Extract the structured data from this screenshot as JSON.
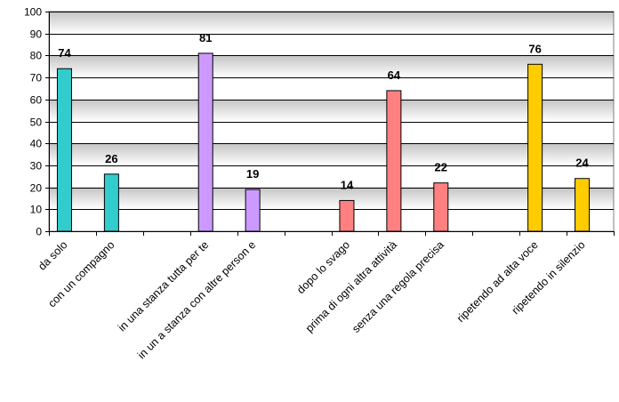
{
  "chart_data": {
    "type": "bar",
    "title": "",
    "xlabel": "",
    "ylabel": "",
    "ylim": [
      0,
      100
    ],
    "yticks": [
      0,
      10,
      20,
      30,
      40,
      50,
      60,
      70,
      80,
      90,
      100
    ],
    "grid": true,
    "legend": "none",
    "categories": [
      "da solo",
      "con un compagno",
      "",
      "in una stanza tutta per te",
      "in un a stanza con altre person e",
      "",
      "dopo lo svago",
      "prima di ogni altra attività",
      "senza una regola precisa",
      "",
      "ripetendo ad alta voce",
      "ripetendo in silenzio"
    ],
    "values": [
      74,
      26,
      null,
      81,
      19,
      null,
      14,
      64,
      22,
      null,
      76,
      24
    ],
    "bar_colors": [
      "#33CCCC",
      "#33CCCC",
      "",
      "#CC99FF",
      "#CC99FF",
      "",
      "#FF8080",
      "#FF8080",
      "#FF8080",
      "",
      "#FFCC00",
      "#FFCC00"
    ],
    "plot_background_gradient": [
      "#C0C0C0",
      "#FFFFFF"
    ],
    "gridline_color": "#000000",
    "bar_outline_color": "#000000"
  }
}
